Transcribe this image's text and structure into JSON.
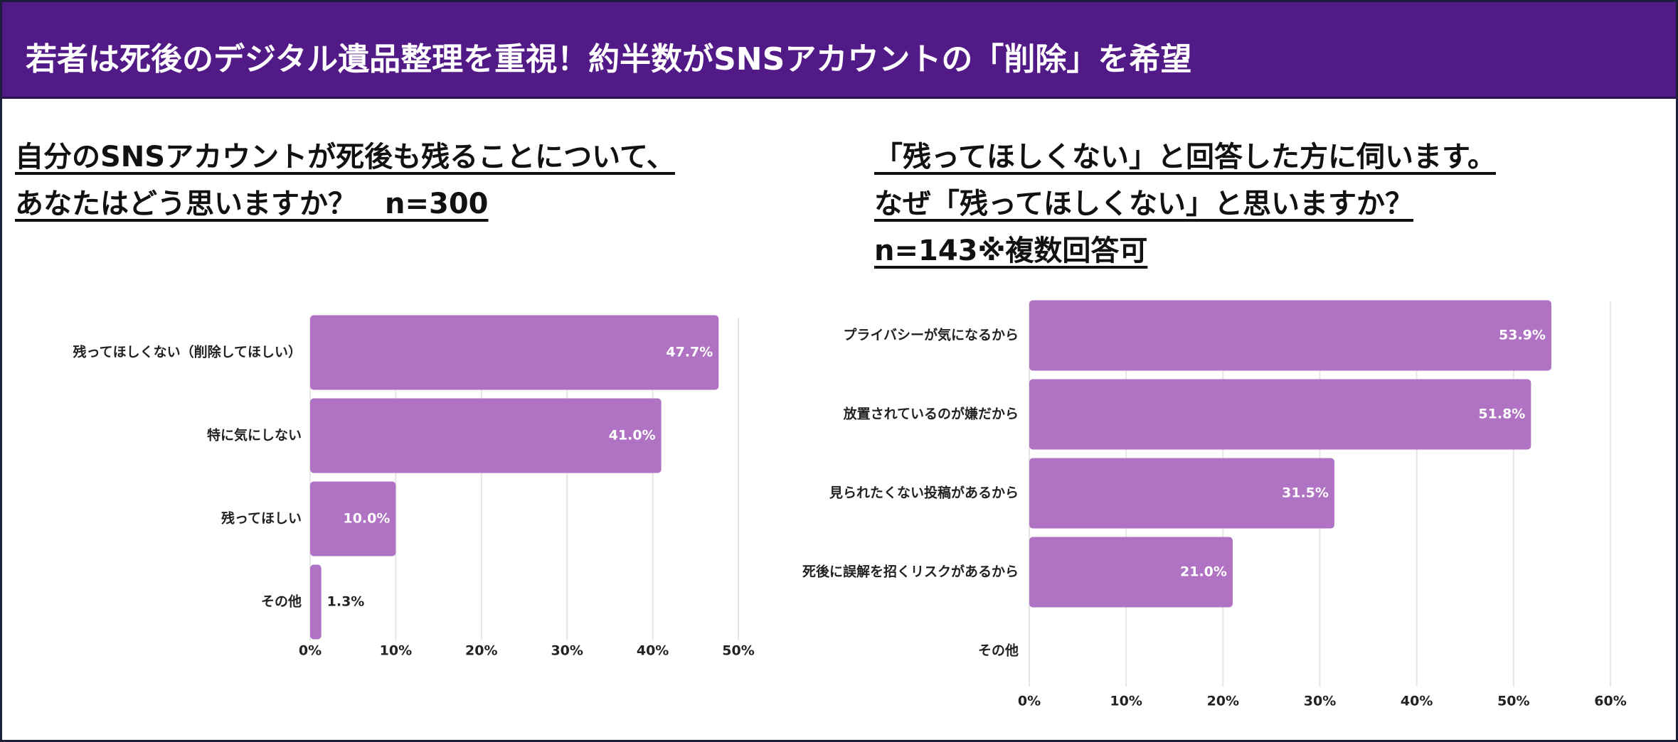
{
  "header": {
    "title": "若者は死後のデジタル遺品整理を重視！約半数がSNSアカウントの「削除」を希望"
  },
  "chart_data": [
    {
      "type": "barh",
      "title": [
        "自分のSNSアカウントが死後も残ることについて、",
        "あなたはどう思いますか？　n=300"
      ],
      "categories": [
        "残ってほしくない（削除してほしい）",
        "特に気にしない",
        "残ってほしい",
        "その他"
      ],
      "values": [
        47.7,
        41.0,
        10.0,
        1.3
      ],
      "value_labels": [
        "47.7%",
        "41.0%",
        "10.0%",
        "1.3%"
      ],
      "color": "#b072c2",
      "xlim": [
        0,
        50
      ],
      "xticks": [
        {
          "value": 0,
          "label": "0%"
        },
        {
          "value": 10,
          "label": "10%"
        },
        {
          "value": 20,
          "label": "20%"
        },
        {
          "value": 30,
          "label": "30%"
        },
        {
          "value": 40,
          "label": "40%"
        },
        {
          "value": 50,
          "label": "50%"
        }
      ],
      "grid": true
    },
    {
      "type": "barh",
      "title": [
        "「残ってほしくない」と回答した方に伺います。",
        "なぜ「残ってほしくない」と思いますか？",
        "n=143※複数回答可"
      ],
      "categories": [
        "プライバシーが気になるから",
        "放置されているのが嫌だから",
        "見られたくない投稿があるから",
        "死後に誤解を招くリスクがあるから",
        "その他"
      ],
      "values": [
        53.9,
        51.8,
        31.5,
        21.0,
        null
      ],
      "value_labels": [
        "53.9%",
        "51.8%",
        "31.5%",
        "21.0%",
        null
      ],
      "color": "#b072c2",
      "xlim": [
        0,
        60
      ],
      "xticks": [
        {
          "value": 0,
          "label": "0%"
        },
        {
          "value": 10,
          "label": "10%"
        },
        {
          "value": 20,
          "label": "20%"
        },
        {
          "value": 30,
          "label": "30%"
        },
        {
          "value": 40,
          "label": "40%"
        },
        {
          "value": 50,
          "label": "50%"
        },
        {
          "value": 60,
          "label": "60%"
        }
      ],
      "grid": true
    }
  ]
}
